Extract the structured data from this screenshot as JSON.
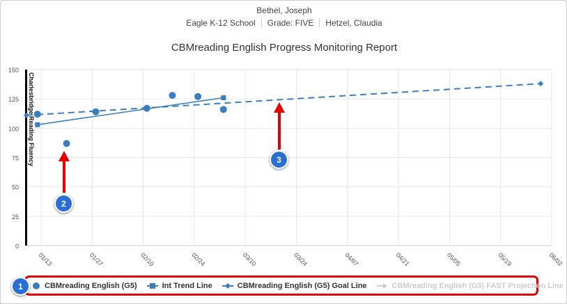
{
  "header": {
    "student": "Bethel, Joseph",
    "school": "Eagle K-12 School",
    "grade": "Grade: FIVE",
    "teacher": "Hetzel, Claudia"
  },
  "colors": {
    "series": "#3a7ebf",
    "faded": "#cccccc",
    "highlight": "#e30000",
    "badge": "#2a6fd4"
  },
  "chart_data": {
    "type": "line",
    "title": "CBMreading English Progress Monitoring Report",
    "ylabel": "Charlesbridge Reading Fluency",
    "xlabel": "",
    "ylim": [
      0,
      150
    ],
    "yticks": [
      0,
      25,
      50,
      75,
      100,
      125,
      150
    ],
    "xlim": [
      "2025-01-09",
      "2025-06-02"
    ],
    "xticks": [
      {
        "date": "2025-01-13",
        "label": "01/13"
      },
      {
        "date": "2025-01-27",
        "label": "01/27"
      },
      {
        "date": "2025-02-10",
        "label": "02/10"
      },
      {
        "date": "2025-02-24",
        "label": "02/24"
      },
      {
        "date": "2025-03-10",
        "label": "03/10"
      },
      {
        "date": "2025-03-24",
        "label": "03/24"
      },
      {
        "date": "2025-04-07",
        "label": "04/07"
      },
      {
        "date": "2025-04-21",
        "label": "04/21"
      },
      {
        "date": "2025-05-05",
        "label": "05/05"
      },
      {
        "date": "2025-05-19",
        "label": "05/19"
      },
      {
        "date": "2025-06-02",
        "label": "06/02"
      }
    ],
    "grid": true,
    "legend_position": "bottom",
    "series": [
      {
        "name": "CBMreading English (G5)",
        "kind": "scatter",
        "marker": "circle",
        "points": [
          [
            "2025-01-12",
            112
          ],
          [
            "2025-01-20",
            87
          ],
          [
            "2025-01-28",
            114
          ],
          [
            "2025-02-11",
            117
          ],
          [
            "2025-02-18",
            128
          ],
          [
            "2025-02-25",
            127
          ],
          [
            "2025-03-04",
            116
          ]
        ]
      },
      {
        "name": "Int Trend Line",
        "kind": "line",
        "marker": "square",
        "points": [
          [
            "2025-01-12",
            103
          ],
          [
            "2025-03-04",
            126
          ]
        ]
      },
      {
        "name": "CBMreading English (G5) Goal Line",
        "kind": "dashed",
        "marker": "diamond",
        "points": [
          [
            "2025-01-09",
            111
          ],
          [
            "2025-05-30",
            138
          ]
        ]
      },
      {
        "name": "CBMreading English (G5) FAST Projection Line",
        "kind": "hidden",
        "marker": "arrow",
        "points": []
      }
    ]
  },
  "annotations": [
    {
      "label": "1"
    },
    {
      "label": "2"
    },
    {
      "label": "3"
    }
  ]
}
